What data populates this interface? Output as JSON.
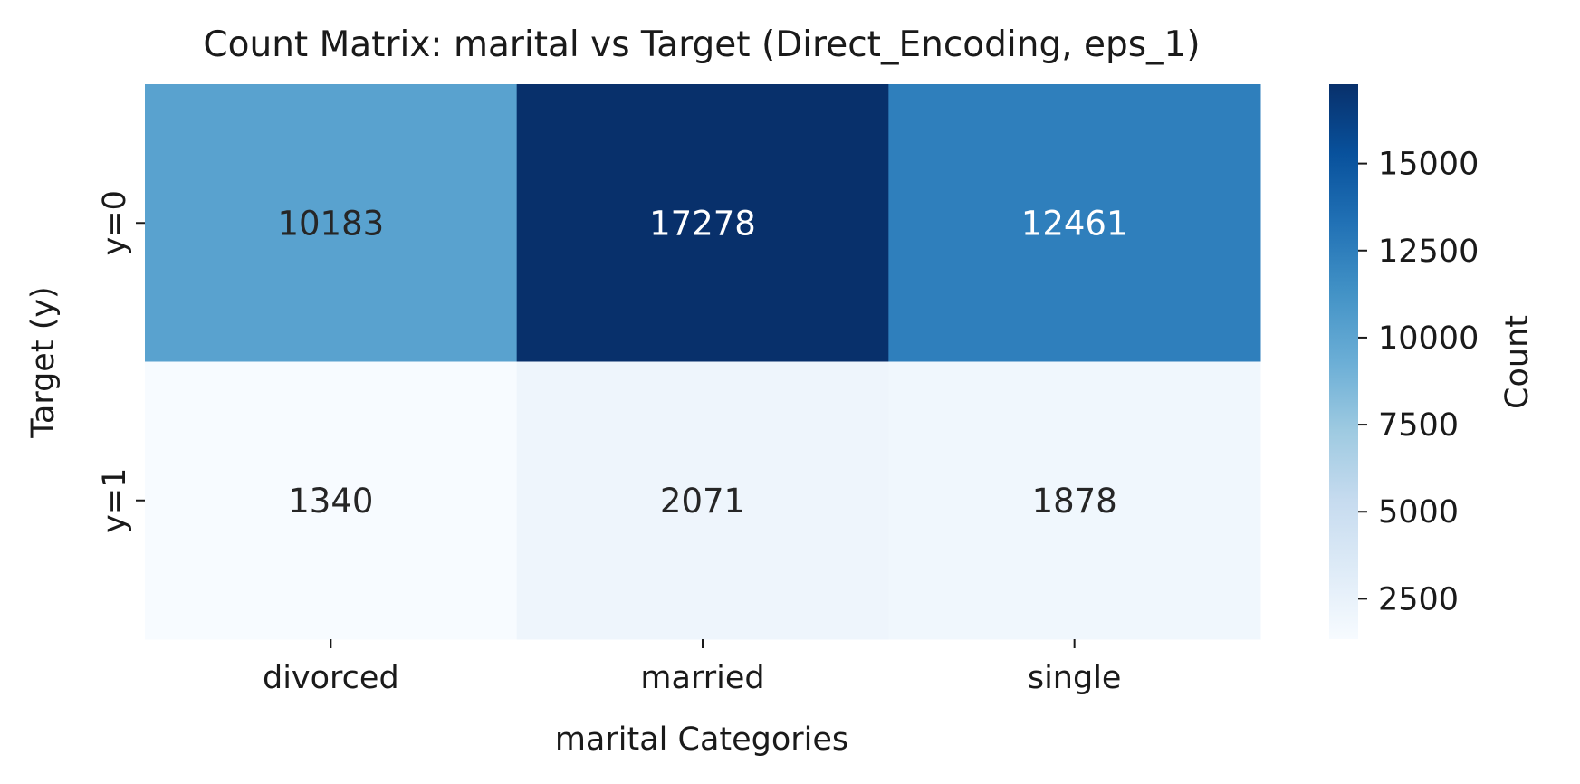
{
  "chart_data": {
    "type": "heatmap",
    "title": "Count Matrix: marital vs Target (Direct_Encoding, eps_1)",
    "xlabel": "marital Categories",
    "ylabel": "Target (y)",
    "x_categories": [
      "divorced",
      "married",
      "single"
    ],
    "y_categories": [
      "y=0",
      "y=1"
    ],
    "values": [
      [
        10183,
        17278,
        12461
      ],
      [
        1340,
        2071,
        1878
      ]
    ],
    "colormap": "Blues",
    "colorbar": {
      "label": "Count",
      "ticks": [
        2500,
        5000,
        7500,
        10000,
        12500,
        15000
      ],
      "tick_labels": [
        "2500",
        "5000",
        "7500",
        "10000",
        "12500",
        "15000"
      ],
      "range": [
        1340,
        17278
      ]
    },
    "annotation_colors": {
      "dark": "#262626",
      "light": "#ffffff"
    }
  }
}
